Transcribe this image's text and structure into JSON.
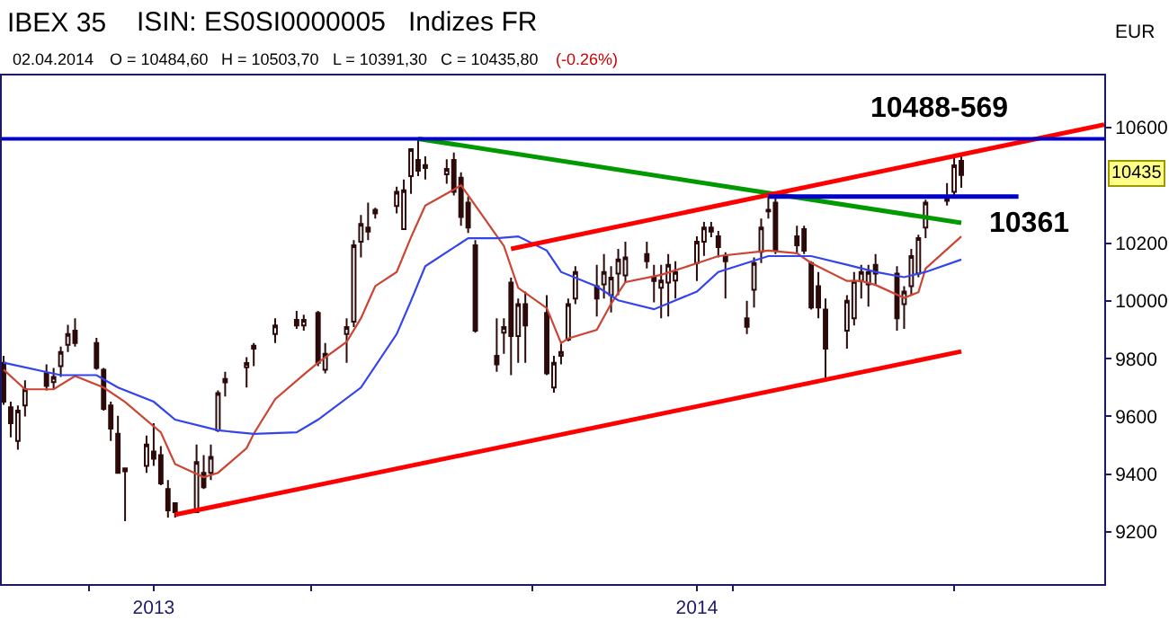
{
  "chart_data": {
    "type": "candlestick",
    "title": "IBEX 35",
    "subtitle": "ISIN: ES0SI0000005",
    "ylabel": "EUR",
    "x": [
      "2013-11-19",
      "2013-11-20",
      "2013-11-21",
      "2013-11-22",
      "2013-11-25",
      "2013-11-26",
      "2013-11-27",
      "2013-11-28",
      "2013-11-29",
      "2013-12-02",
      "2013-12-03",
      "2013-12-04",
      "2013-12-05",
      "2013-12-06",
      "2013-12-09",
      "2013-12-10",
      "2013-12-11",
      "2013-12-12",
      "2013-12-13",
      "2013-12-16",
      "2013-12-17",
      "2013-12-18",
      "2013-12-19",
      "2013-12-20",
      "2013-12-23",
      "2013-12-24",
      "2013-12-27",
      "2013-12-30",
      "2013-12-31",
      "2014-01-02",
      "2014-01-03",
      "2014-01-06",
      "2014-01-07",
      "2014-01-08",
      "2014-01-09",
      "2014-01-10",
      "2014-01-13",
      "2014-01-14",
      "2014-01-15",
      "2014-01-16",
      "2014-01-17",
      "2014-01-20",
      "2014-01-21",
      "2014-01-22",
      "2014-01-23",
      "2014-01-24",
      "2014-01-27",
      "2014-01-28",
      "2014-01-29",
      "2014-01-30",
      "2014-01-31",
      "2014-02-03",
      "2014-02-04",
      "2014-02-05",
      "2014-02-06",
      "2014-02-07",
      "2014-02-10",
      "2014-02-11",
      "2014-02-12",
      "2014-02-13",
      "2014-02-14",
      "2014-02-17",
      "2014-02-18",
      "2014-02-19",
      "2014-02-20",
      "2014-02-21",
      "2014-02-24",
      "2014-02-25",
      "2014-02-26",
      "2014-02-27",
      "2014-02-28",
      "2014-03-03",
      "2014-03-04",
      "2014-03-05",
      "2014-03-06",
      "2014-03-07",
      "2014-03-10",
      "2014-03-11",
      "2014-03-12",
      "2014-03-13",
      "2014-03-14",
      "2014-03-17",
      "2014-03-18",
      "2014-03-19",
      "2014-03-20",
      "2014-03-21",
      "2014-03-24",
      "2014-03-25",
      "2014-03-26",
      "2014-03-27",
      "2014-03-28",
      "2014-03-31",
      "2014-04-01",
      "2014-04-02"
    ],
    "series": [
      {
        "type": "line",
        "color": "#cc4433",
        "x": [
          "2013-11-19",
          "2013-11-22",
          "2013-11-26",
          "2013-11-29",
          "2013-12-03",
          "2013-12-06",
          "2013-12-11",
          "2013-12-13",
          "2013-12-17",
          "2013-12-19",
          "2013-12-23",
          "2013-12-24",
          "2013-12-27",
          "2013-12-31",
          "2014-01-02",
          "2014-01-06",
          "2014-01-08",
          "2014-01-10",
          "2014-01-13",
          "2014-01-15",
          "2014-01-17",
          "2014-01-21",
          "2014-01-22",
          "2014-01-24",
          "2014-01-28",
          "2014-01-30",
          "2014-02-03",
          "2014-02-05",
          "2014-02-06",
          "2014-02-10",
          "2014-02-12",
          "2014-02-14",
          "2014-02-19",
          "2014-02-24",
          "2014-02-27",
          "2014-03-06",
          "2014-03-10",
          "2014-03-12",
          "2014-03-17",
          "2014-03-19",
          "2014-03-21",
          "2014-03-25",
          "2014-03-27",
          "2014-03-28",
          "2014-04-02"
        ],
        "values": [
          9762,
          9694,
          9694,
          9740,
          9700,
          9650,
          9545,
          9435,
          9390,
          9405,
          9490,
          9540,
          9660,
          9745,
          9786,
          9858,
          9940,
          10051,
          10100,
          10220,
          10330,
          10385,
          10400,
          10330,
          10190,
          10045,
          9975,
          9854,
          9870,
          9900,
          9990,
          10065,
          10090,
          10130,
          10155,
          10174,
          10165,
          10131,
          10069,
          10069,
          10055,
          10010,
          10030,
          10112,
          10223
        ]
      },
      {
        "type": "line",
        "color": "#3344ee",
        "x": [
          "2013-11-19",
          "2013-11-27",
          "2013-12-02",
          "2013-12-05",
          "2013-12-10",
          "2013-12-13",
          "2013-12-19",
          "2013-12-24",
          "2013-12-30",
          "2014-01-02",
          "2014-01-08",
          "2014-01-13",
          "2014-01-15",
          "2014-01-17",
          "2014-01-23",
          "2014-01-27",
          "2014-01-30",
          "2014-02-03",
          "2014-02-05",
          "2014-02-10",
          "2014-02-13",
          "2014-02-18",
          "2014-02-24",
          "2014-02-27",
          "2014-03-06",
          "2014-03-12",
          "2014-03-17",
          "2014-03-21",
          "2014-03-25",
          "2014-03-28",
          "2014-04-02"
        ],
        "values": [
          9786,
          9743,
          9743,
          9700,
          9651,
          9589,
          9552,
          9540,
          9545,
          9589,
          9700,
          9885,
          10000,
          10120,
          10217,
          10217,
          10223,
          10174,
          10100,
          10050,
          10002,
          9971,
          10032,
          10100,
          10155,
          10155,
          10125,
          10100,
          10082,
          10100,
          10143
        ]
      },
      {
        "type": "line",
        "color": "#009900",
        "x": [
          "2014-01-16",
          "2014-04-02"
        ],
        "values": [
          10561,
          10270
        ]
      },
      {
        "type": "line",
        "color": "#ff0000",
        "x": [
          "2014-01-29",
          "2014-04-22"
        ],
        "values": [
          10180,
          10610
        ]
      },
      {
        "type": "line",
        "color": "#ff0000",
        "x": [
          "2013-12-13",
          "2014-04-02"
        ],
        "values": [
          9260,
          9825
        ]
      },
      {
        "type": "line",
        "color": "#0000cc",
        "x": [
          "2014-03-06",
          "2014-04-10"
        ],
        "values": [
          10361,
          10361
        ]
      },
      {
        "color": "#2d0a0a",
        "ohlc": [
          [
            9786,
            9810,
            9640,
            9651
          ],
          [
            9632,
            9651,
            9528,
            9577
          ],
          [
            9515,
            9638,
            9485,
            9620
          ],
          [
            9638,
            9725,
            9600,
            9694
          ],
          [
            9750,
            9780,
            9690,
            9706
          ],
          [
            9719,
            9768,
            9694,
            9737
          ],
          [
            9774,
            9842,
            9737,
            9823
          ],
          [
            9848,
            9917,
            9823,
            9885
          ],
          [
            9897,
            9940,
            9842,
            9854
          ],
          [
            9854,
            9872,
            9762,
            9768
          ],
          [
            9762,
            9768,
            9620,
            9626
          ],
          [
            9638,
            9651,
            9515,
            9558
          ],
          [
            9540,
            9602,
            9405,
            9405
          ],
          [
            9420,
            9423,
            9238,
            9410
          ],
          [
            9429,
            9534,
            9405,
            9503
          ],
          [
            9479,
            9577,
            9429,
            9454
          ],
          [
            9466,
            9497,
            9362,
            9368
          ],
          [
            9349,
            9380,
            9250,
            9275
          ],
          [
            9300,
            9300,
            9250,
            9269
          ],
          [
            9269,
            9503,
            9269,
            9442
          ],
          [
            9405,
            9466,
            9349,
            9355
          ],
          [
            9405,
            9503,
            9380,
            9460
          ],
          [
            9552,
            9690,
            9546,
            9681
          ],
          [
            9718,
            9755,
            9669,
            9730
          ],
          [
            9770,
            9805,
            9700,
            9785
          ],
          [
            9835,
            9854,
            9774,
            9845
          ],
          [
            9885,
            9940,
            9854,
            9915
          ],
          [
            9934,
            9965,
            9903,
            9915
          ],
          [
            9915,
            9952,
            9897,
            9934
          ],
          [
            9958,
            9965,
            9774,
            9786
          ],
          [
            9762,
            9854,
            9749,
            9817
          ],
          [
            9885,
            9940,
            9786,
            9909
          ],
          [
            9928,
            10210,
            9909,
            10192
          ],
          [
            10205,
            10297,
            10150,
            10266
          ],
          [
            10254,
            10340,
            10210,
            10240
          ],
          [
            10315,
            10322,
            10285,
            10303
          ],
          [
            10328,
            10395,
            10303,
            10377
          ],
          [
            10248,
            10420,
            10248,
            10383
          ],
          [
            10432,
            10525,
            10370,
            10525
          ],
          [
            10488,
            10561,
            10432,
            10450
          ],
          [
            10470,
            10500,
            10420,
            10460
          ],
          [
            10438,
            10490,
            10405,
            10457
          ],
          [
            10488,
            10513,
            10365,
            10377
          ],
          [
            10426,
            10445,
            10260,
            10290
          ],
          [
            10340,
            10360,
            10235,
            10254
          ],
          [
            10192,
            10210,
            9890,
            9897
          ],
          [
            9810,
            9940,
            9755,
            9780
          ],
          [
            9890,
            9940,
            9817,
            9909
          ],
          [
            10063,
            10080,
            9743,
            9878
          ],
          [
            9878,
            10008,
            9786,
            9989
          ],
          [
            9989,
            10032,
            9786,
            9915
          ],
          [
            9958,
            10020,
            9743,
            9749
          ],
          [
            9700,
            9810,
            9682,
            9786
          ],
          [
            9810,
            9860,
            9780,
            9823
          ],
          [
            9866,
            10008,
            9860,
            9989
          ],
          [
            10008,
            10120,
            9989,
            10100
          ],
          [
            10051,
            10125,
            9946,
            10008
          ],
          [
            10057,
            10162,
            10008,
            10100
          ],
          [
            10020,
            10120,
            9960,
            10080
          ],
          [
            10094,
            10180,
            10020,
            10143
          ],
          [
            10088,
            10205,
            10063,
            10150
          ],
          [
            10162,
            10205,
            10112,
            10137
          ],
          [
            10082,
            10125,
            9995,
            10069
          ],
          [
            10045,
            10125,
            9940,
            10070
          ],
          [
            10063,
            10162,
            9946,
            10125
          ],
          [
            10070,
            10137,
            10008,
            10100
          ],
          [
            10131,
            10223,
            10069,
            10205
          ],
          [
            10205,
            10273,
            10156,
            10254
          ],
          [
            10254,
            10273,
            10220,
            10240
          ],
          [
            10223,
            10242,
            10150,
            10186
          ],
          [
            10155,
            10168,
            10008,
            10137
          ],
          [
            9940,
            10000,
            9885,
            9910
          ],
          [
            10038,
            10150,
            9977,
            10131
          ],
          [
            10170,
            10285,
            10131,
            10254
          ],
          [
            10310,
            10376,
            10285,
            10315
          ],
          [
            10340,
            10365,
            10162,
            10174
          ],
          [
            10223,
            10260,
            10162,
            10192
          ],
          [
            10248,
            10260,
            10162,
            10174
          ],
          [
            10131,
            10137,
            9970,
            9977
          ],
          [
            10051,
            10100,
            9940,
            9977
          ],
          [
            9970,
            10008,
            9725,
            9835
          ],
          [
            9897,
            10020,
            9835,
            10000
          ],
          [
            9940,
            10100,
            9915,
            10069
          ],
          [
            10069,
            10125,
            10008,
            10100
          ],
          [
            10057,
            10125,
            9980,
            10100
          ],
          [
            10125,
            10162,
            10057,
            10094
          ],
          [
            10094,
            10120,
            9897,
            9940
          ],
          [
            9989,
            10051,
            9903,
            10032
          ],
          [
            10051,
            10180,
            10020,
            10155
          ],
          [
            10094,
            10229,
            10082,
            10217
          ],
          [
            10254,
            10350,
            10217,
            10340
          ],
          [
            10353,
            10408,
            10330,
            10346
          ],
          [
            10377,
            10500,
            10365,
            10469
          ],
          [
            10484.6,
            10503.7,
            10391.3,
            10435.8
          ]
        ]
      }
    ],
    "ref_lines": [
      {
        "axis": "y",
        "value": 10561,
        "color": "#0000cc"
      }
    ],
    "xlim": [
      "2013-11-18T18:00",
      "2014-04-22"
    ],
    "xticks": [
      {
        "value": "2013-12-01",
        "label": null
      },
      {
        "value": "2013-12-10",
        "label": "2013"
      },
      {
        "value": "2014-01-01",
        "label": null
      },
      {
        "value": "2014-02-01",
        "label": null
      },
      {
        "value": "2014-02-24",
        "label": "2014"
      },
      {
        "value": "2014-03-01",
        "label": null
      },
      {
        "value": "2014-04-01",
        "label": null
      }
    ],
    "ylim": [
      9020,
      10780
    ],
    "yticks": [
      9200,
      9400,
      9600,
      9800,
      10000,
      10200,
      10600
    ],
    "annotations": [
      "Indizes FR",
      "02.04.2014",
      "O = 10484,60",
      "H = 10503,70",
      "L = 10391,30",
      "C = 10435,80",
      "(-0.26%)",
      "10488-569",
      {
        "text": "10361",
        "x": "2014-04-10",
        "y": 10361
      },
      "10435"
    ]
  }
}
